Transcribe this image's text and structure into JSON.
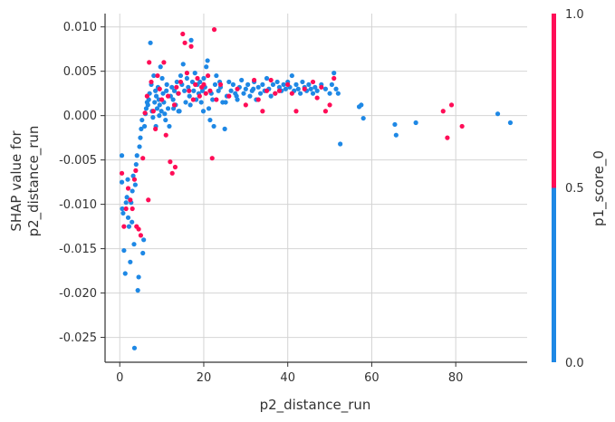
{
  "chart_data": {
    "type": "scatter",
    "title": "",
    "xlabel": "p2_distance_run",
    "ylabel_lines": [
      "SHAP value for",
      "p2_distance_run"
    ],
    "xlim": [
      -3.5,
      97
    ],
    "ylim": [
      -0.0278,
      0.0115
    ],
    "x_ticks": [
      0,
      20,
      40,
      60,
      80
    ],
    "x_tick_labels": [
      "0",
      "20",
      "40",
      "60",
      "80"
    ],
    "y_ticks": [
      0.01,
      0.005,
      0.0,
      -0.005,
      -0.01,
      -0.015,
      -0.02,
      -0.025
    ],
    "y_tick_labels": [
      "0.010",
      "0.005",
      "0.000",
      "-0.005",
      "-0.010",
      "-0.015",
      "-0.020",
      "-0.025"
    ],
    "grid": true,
    "colorbar": {
      "label": "p1_score_0",
      "ticks": [
        "1.0",
        "0.5",
        "0.0"
      ],
      "low_color": "#1e88e5",
      "high_color": "#ff0d57"
    },
    "series": [
      {
        "color": "#1e88e5",
        "points": [
          [
            0.5,
            -0.0045
          ],
          [
            0.5,
            -0.0075
          ],
          [
            0.6,
            -0.0105
          ],
          [
            0.8,
            -0.011
          ],
          [
            1.0,
            -0.0152
          ],
          [
            1.3,
            -0.0178
          ],
          [
            1.5,
            -0.0098
          ],
          [
            1.7,
            -0.0092
          ],
          [
            2.0,
            -0.0115
          ],
          [
            2.2,
            -0.0125
          ],
          [
            2.5,
            -0.0165
          ],
          [
            2.7,
            -0.0098
          ],
          [
            3.0,
            -0.0085
          ],
          [
            3.2,
            -0.0068
          ],
          [
            3.5,
            -0.0262
          ],
          [
            3.7,
            -0.0078
          ],
          [
            3.9,
            -0.0055
          ],
          [
            4.1,
            -0.0045
          ],
          [
            4.3,
            -0.0197
          ],
          [
            4.5,
            -0.0182
          ],
          [
            4.7,
            -0.0035
          ],
          [
            4.9,
            -0.0025
          ],
          [
            5.1,
            -0.0015
          ],
          [
            5.3,
            -0.0005
          ],
          [
            5.5,
            -0.0155
          ],
          [
            5.7,
            -0.014
          ],
          [
            5.9,
            -0.0012
          ],
          [
            6.1,
            0.0002
          ],
          [
            6.3,
            0.0008
          ],
          [
            6.5,
            0.0015
          ],
          [
            6.7,
            0.0012
          ],
          [
            6.9,
            0.0018
          ],
          [
            7.1,
            0.0025
          ],
          [
            7.3,
            0.0082
          ],
          [
            7.5,
            0.0035
          ],
          [
            7.7,
            0.0005
          ],
          [
            7.9,
            -0.0002
          ],
          [
            8.1,
            0.0045
          ],
          [
            8.3,
            0.0015
          ],
          [
            8.5,
            0.0028
          ],
          [
            8.7,
            0.0022
          ],
          [
            8.9,
            0.0008
          ],
          [
            9.1,
            0.0032
          ],
          [
            9.3,
            0.0018
          ],
          [
            9.5,
            0.0012
          ],
          [
            9.7,
            0.0055
          ],
          [
            9.9,
            0.0005
          ],
          [
            10.1,
            0.0042
          ],
          [
            10.3,
            0.0025
          ],
          [
            10.5,
            0.0015
          ],
          [
            10.7,
            0.0002
          ],
          [
            10.9,
            -0.0005
          ],
          [
            11.2,
            0.0035
          ],
          [
            11.5,
            0.0008
          ],
          [
            11.8,
            -0.0012
          ],
          [
            12.1,
            0.0022
          ],
          [
            12.4,
            0.0032
          ],
          [
            12.7,
            0.0018
          ],
          [
            13.0,
            0.0028
          ],
          [
            13.3,
            0.0012
          ],
          [
            13.6,
            0.0038
          ],
          [
            13.9,
            0.0025
          ],
          [
            14.2,
            0.0005
          ],
          [
            14.5,
            0.0045
          ],
          [
            14.8,
            0.0035
          ],
          [
            15.1,
            0.0058
          ],
          [
            15.4,
            0.0028
          ],
          [
            15.7,
            0.0015
          ],
          [
            16.0,
            0.0042
          ],
          [
            16.3,
            0.0032
          ],
          [
            16.6,
            0.0022
          ],
          [
            17.0,
            0.0085
          ],
          [
            17.3,
            0.0038
          ],
          [
            17.6,
            0.0028
          ],
          [
            17.9,
            0.0048
          ],
          [
            18.2,
            0.0018
          ],
          [
            18.5,
            0.0035
          ],
          [
            18.8,
            0.0025
          ],
          [
            19.1,
            0.0038
          ],
          [
            19.4,
            0.0015
          ],
          [
            19.7,
            0.0028
          ],
          [
            20.0,
            0.0042
          ],
          [
            20.3,
            0.0032
          ],
          [
            20.6,
            0.0055
          ],
          [
            20.9,
            0.0062
          ],
          [
            21.2,
            0.0008
          ],
          [
            21.5,
            -0.0005
          ],
          [
            21.8,
            0.0025
          ],
          [
            22.1,
            0.0018
          ],
          [
            22.4,
            -0.0012
          ],
          [
            22.7,
            0.0035
          ],
          [
            23.0,
            0.0045
          ],
          [
            23.5,
            0.0028
          ],
          [
            24.0,
            0.0032
          ],
          [
            24.5,
            0.0015
          ],
          [
            25.0,
            -0.0015
          ],
          [
            25.5,
            0.0022
          ],
          [
            26.0,
            0.0038
          ],
          [
            26.5,
            0.0028
          ],
          [
            27.0,
            0.0035
          ],
          [
            27.5,
            0.0025
          ],
          [
            28.0,
            0.0018
          ],
          [
            28.5,
            0.0032
          ],
          [
            29.0,
            0.004
          ],
          [
            29.5,
            0.0025
          ],
          [
            30.0,
            0.003
          ],
          [
            30.5,
            0.0035
          ],
          [
            31.0,
            0.0022
          ],
          [
            31.5,
            0.0028
          ],
          [
            32.0,
            0.0038
          ],
          [
            32.5,
            0.0018
          ],
          [
            33.0,
            0.0032
          ],
          [
            33.5,
            0.0025
          ],
          [
            34.0,
            0.0035
          ],
          [
            34.5,
            0.0028
          ],
          [
            35.0,
            0.0042
          ],
          [
            35.5,
            0.003
          ],
          [
            36.0,
            0.0022
          ],
          [
            36.5,
            0.0035
          ],
          [
            37.0,
            0.0025
          ],
          [
            37.5,
            0.0038
          ],
          [
            38.0,
            0.0032
          ],
          [
            38.5,
            0.0028
          ],
          [
            39.0,
            0.0035
          ],
          [
            39.5,
            0.003
          ],
          [
            40.0,
            0.0038
          ],
          [
            40.5,
            0.0032
          ],
          [
            41.0,
            0.0045
          ],
          [
            41.5,
            0.0028
          ],
          [
            42.0,
            0.0035
          ],
          [
            42.5,
            0.003
          ],
          [
            43.0,
            0.0025
          ],
          [
            43.5,
            0.0038
          ],
          [
            44.0,
            0.0032
          ],
          [
            44.5,
            0.0028
          ],
          [
            45.0,
            0.0035
          ],
          [
            45.5,
            0.003
          ],
          [
            46.0,
            0.0025
          ],
          [
            46.5,
            0.0032
          ],
          [
            47.0,
            0.0028
          ],
          [
            48.0,
            0.0035
          ],
          [
            49.0,
            0.003
          ],
          [
            50.0,
            0.0025
          ],
          [
            50.5,
            0.0035
          ],
          [
            51.0,
            0.0048
          ],
          [
            51.5,
            0.003
          ],
          [
            52.0,
            0.0025
          ],
          [
            52.5,
            -0.0032
          ],
          [
            57.0,
            0.001
          ],
          [
            57.5,
            0.0012
          ],
          [
            58.0,
            -0.0003
          ],
          [
            65.5,
            -0.001
          ],
          [
            65.8,
            -0.0022
          ],
          [
            70.5,
            -0.0008
          ],
          [
            90.0,
            0.0002
          ],
          [
            93.0,
            -0.0008
          ],
          [
            25.2,
            0.0015
          ],
          [
            12.8,
            0.0008
          ],
          [
            9.4,
            0.0
          ],
          [
            3.4,
            -0.0145
          ],
          [
            2.9,
            -0.012
          ],
          [
            1.9,
            -0.0072
          ],
          [
            14.0,
            0.0005
          ],
          [
            16.8,
            0.0012
          ],
          [
            19.9,
            0.0005
          ],
          [
            23.8,
            0.0038
          ],
          [
            27.8,
            0.0022
          ],
          [
            31.8,
            0.003
          ],
          [
            8.6,
            -0.0012
          ],
          [
            11.1,
            0.0028
          ]
        ]
      },
      {
        "color": "#ff0d57",
        "points": [
          [
            0.5,
            -0.0065
          ],
          [
            1.0,
            -0.0125
          ],
          [
            1.5,
            -0.0105
          ],
          [
            2.0,
            -0.0082
          ],
          [
            2.5,
            -0.0095
          ],
          [
            3.0,
            -0.0105
          ],
          [
            3.5,
            -0.0072
          ],
          [
            4.0,
            -0.0125
          ],
          [
            4.5,
            -0.0128
          ],
          [
            5.0,
            -0.0135
          ],
          [
            5.5,
            -0.0048
          ],
          [
            6.0,
            0.0003
          ],
          [
            6.5,
            0.0022
          ],
          [
            7.0,
            0.006
          ],
          [
            7.5,
            0.0038
          ],
          [
            8.0,
            0.0005
          ],
          [
            8.5,
            -0.0015
          ],
          [
            9.0,
            0.0045
          ],
          [
            9.5,
            0.003
          ],
          [
            10.0,
            0.0018
          ],
          [
            10.5,
            0.006
          ],
          [
            11.0,
            -0.0022
          ],
          [
            11.5,
            0.0022
          ],
          [
            12.0,
            -0.0052
          ],
          [
            12.5,
            -0.0065
          ],
          [
            13.0,
            0.0012
          ],
          [
            13.5,
            0.0032
          ],
          [
            14.0,
            0.0025
          ],
          [
            14.5,
            0.0038
          ],
          [
            15.0,
            0.0092
          ],
          [
            15.5,
            0.0082
          ],
          [
            16.0,
            0.0048
          ],
          [
            16.5,
            0.0028
          ],
          [
            17.0,
            0.0078
          ],
          [
            17.5,
            0.0018
          ],
          [
            18.0,
            0.0035
          ],
          [
            18.5,
            0.0042
          ],
          [
            19.0,
            0.0022
          ],
          [
            19.5,
            0.0032
          ],
          [
            20.0,
            0.0035
          ],
          [
            20.5,
            0.0025
          ],
          [
            21.0,
            0.0045
          ],
          [
            21.5,
            0.0028
          ],
          [
            22.0,
            -0.0048
          ],
          [
            22.5,
            0.0097
          ],
          [
            23.0,
            0.0018
          ],
          [
            24.0,
            0.0035
          ],
          [
            26.0,
            0.0022
          ],
          [
            28.0,
            0.003
          ],
          [
            30.0,
            0.0012
          ],
          [
            32.0,
            0.004
          ],
          [
            33.0,
            0.0018
          ],
          [
            34.0,
            0.0005
          ],
          [
            35.0,
            0.0028
          ],
          [
            36.0,
            0.004
          ],
          [
            37.0,
            0.0025
          ],
          [
            38.0,
            0.0028
          ],
          [
            40.0,
            0.0035
          ],
          [
            41.0,
            0.0025
          ],
          [
            42.0,
            0.0005
          ],
          [
            44.0,
            0.003
          ],
          [
            46.0,
            0.0038
          ],
          [
            47.0,
            0.002
          ],
          [
            48.0,
            0.0032
          ],
          [
            49.0,
            0.0005
          ],
          [
            50.0,
            0.0012
          ],
          [
            51.0,
            0.0042
          ],
          [
            77.0,
            0.0005
          ],
          [
            78.0,
            -0.0025
          ],
          [
            79.0,
            0.0012
          ],
          [
            81.5,
            -0.0012
          ],
          [
            6.8,
            -0.0095
          ],
          [
            13.2,
            -0.0058
          ],
          [
            3.8,
            -0.0062
          ]
        ]
      }
    ]
  }
}
